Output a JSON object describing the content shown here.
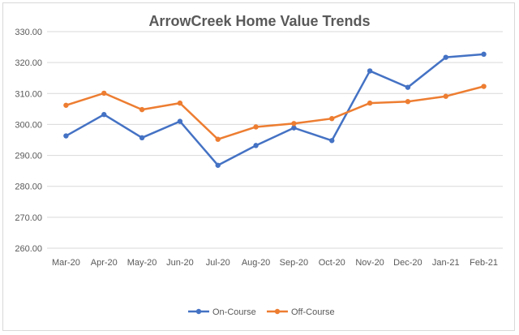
{
  "chart_data": {
    "type": "line",
    "title": "ArrowCreek Home Value Trends",
    "xlabel": "",
    "ylabel": "",
    "categories": [
      "Mar-20",
      "Apr-20",
      "May-20",
      "Jun-20",
      "Jul-20",
      "Aug-20",
      "Sep-20",
      "Oct-20",
      "Nov-20",
      "Dec-20",
      "Jan-21",
      "Feb-21"
    ],
    "ylim": [
      260,
      330
    ],
    "yticks": [
      "260.00",
      "270.00",
      "280.00",
      "290.00",
      "300.00",
      "310.00",
      "320.00",
      "330.00"
    ],
    "grid": true,
    "legend_position": "bottom",
    "series": [
      {
        "name": "On-Course",
        "color": "#4472c4",
        "values": [
          296.3,
          303.2,
          295.7,
          301.0,
          286.8,
          293.2,
          298.9,
          294.8,
          317.3,
          312.0,
          321.7,
          322.7
        ]
      },
      {
        "name": "Off-Course",
        "color": "#ed7d31",
        "values": [
          306.2,
          310.1,
          304.8,
          306.9,
          295.2,
          299.2,
          300.3,
          301.9,
          306.9,
          307.4,
          309.1,
          312.3
        ]
      }
    ]
  }
}
